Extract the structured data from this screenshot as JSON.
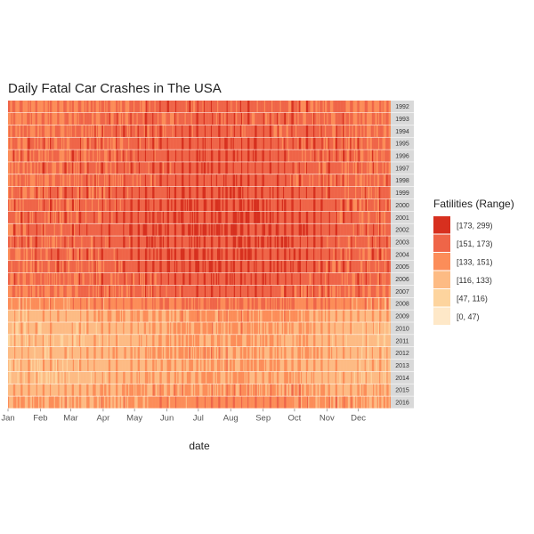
{
  "chart_data": {
    "type": "heatmap",
    "title": "Daily Fatal Car Crashes in The USA",
    "xlabel": "date",
    "ylabel": "",
    "x_ticks": [
      "Jan",
      "Feb",
      "Mar",
      "Apr",
      "May",
      "Jun",
      "Jul",
      "Aug",
      "Sep",
      "Oct",
      "Nov",
      "Dec"
    ],
    "years": [
      "1992",
      "1993",
      "1994",
      "1995",
      "1996",
      "1997",
      "1998",
      "1999",
      "2000",
      "2001",
      "2002",
      "2003",
      "2004",
      "2005",
      "2006",
      "2007",
      "2008",
      "2009",
      "2010",
      "2011",
      "2012",
      "2013",
      "2014",
      "2015",
      "2016"
    ],
    "year_level": [
      3.35,
      3.4,
      3.45,
      3.6,
      3.6,
      3.6,
      3.6,
      3.7,
      3.8,
      3.8,
      3.9,
      3.8,
      3.8,
      3.75,
      3.65,
      3.5,
      2.9,
      2.1,
      1.95,
      1.85,
      2.0,
      1.9,
      1.85,
      2.2,
      2.5
    ],
    "legend": {
      "title": "Fatilities (Range)",
      "position": "right",
      "entries": [
        {
          "label": "[173, 299)",
          "color": "#d7301f"
        },
        {
          "label": "[151, 173)",
          "color": "#ef6548"
        },
        {
          "label": "[133, 151)",
          "color": "#fc8d59"
        },
        {
          "label": "[116, 133)",
          "color": "#fdbb84"
        },
        {
          "label": "[47, 116)",
          "color": "#fdd49e"
        },
        {
          "label": "[0, 47)",
          "color": "#fee8c8"
        }
      ]
    },
    "grid": false
  }
}
